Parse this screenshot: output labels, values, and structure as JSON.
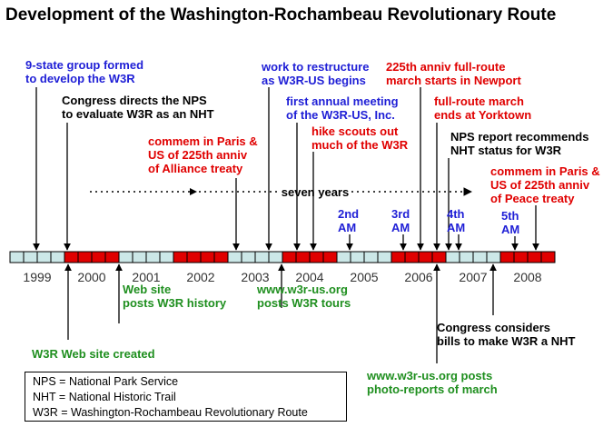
{
  "title": "Development of the Washington-Rochambeau Revolutionary Route",
  "colors": {
    "blue": "#1f1fd6",
    "black": "#000000",
    "red": "#e00000",
    "green": "#1f8f1f",
    "cell_light": "#cce8e8",
    "cell_red": "#e00000"
  },
  "timeline": {
    "years": [
      "1999",
      "2000",
      "2001",
      "2002",
      "2003",
      "2004",
      "2005",
      "2006",
      "2007",
      "2008"
    ],
    "quarters_per_year": 4,
    "red_quarters": [
      [],
      [
        0,
        1,
        2,
        3
      ],
      [],
      [
        0,
        1,
        2,
        3
      ],
      [],
      [
        0,
        1,
        2,
        3
      ],
      [],
      [
        0,
        1,
        2,
        3
      ],
      [],
      [
        0,
        1,
        2,
        3
      ]
    ],
    "span_label": "seven years",
    "span_start_year": 2000.0,
    "span_end_year": 2007.0
  },
  "events": [
    {
      "text": "9-state group formed\nto develop the W3R",
      "color": "blue",
      "year": 1999.0,
      "side": "above"
    },
    {
      "text": "Congress directs the NPS\nto evaluate W3R as an NHT",
      "color": "black",
      "year": 2000.0,
      "side": "above"
    },
    {
      "text": "commem in Paris &\nUS of 225th anniv\nof Alliance treaty",
      "color": "red",
      "year": 2003.0,
      "side": "above"
    },
    {
      "text": "work to restructure\nas W3R-US begins",
      "color": "blue",
      "year": 2003.5,
      "side": "above"
    },
    {
      "text": "first annual meeting\nof the W3R-US, Inc.",
      "color": "blue",
      "year": 2004.0,
      "side": "above"
    },
    {
      "text": "hike scouts out\nmuch of the W3R",
      "color": "red",
      "year": 2004.5,
      "side": "above"
    },
    {
      "text": "2nd\nAM",
      "color": "blue",
      "year": 2005.0,
      "side": "above"
    },
    {
      "text": "3rd\nAM",
      "color": "blue",
      "year": 2006.0,
      "side": "above"
    },
    {
      "text": "225th anniv full-route\nmarch starts in Newport",
      "color": "red",
      "year": 2006.5,
      "side": "above"
    },
    {
      "text": "full-route march\nends at Yorktown",
      "color": "red",
      "year": 2006.75,
      "side": "above"
    },
    {
      "text": "NPS report recommends\nNHT status for W3R",
      "color": "black",
      "year": 2007.0,
      "side": "above"
    },
    {
      "text": "4th\nAM",
      "color": "blue",
      "year": 2007.25,
      "side": "above"
    },
    {
      "text": "5th\nAM",
      "color": "blue",
      "year": 2008.0,
      "side": "above"
    },
    {
      "text": "commem in Paris &\nUS of 225th anniv\nof Peace treaty",
      "color": "red",
      "year": 2008.5,
      "side": "above"
    },
    {
      "text": "W3R Web site created",
      "color": "green",
      "year": 2000.0,
      "side": "below"
    },
    {
      "text": "Web site\nposts W3R history",
      "color": "green",
      "year": 2001.0,
      "side": "below"
    },
    {
      "text": "www.w3r-us.org\nposts W3R tours",
      "color": "green",
      "year": 2003.75,
      "side": "below"
    },
    {
      "text": "Congress considers\nbills to make W3R a NHT",
      "color": "black",
      "year": 2007.25,
      "side": "below"
    },
    {
      "text": "www.w3r-us.org posts\nphoto-reports of march",
      "color": "green",
      "year": 2006.75,
      "side": "below"
    }
  ],
  "legend": [
    "NPS = National Park Service",
    "NHT = National Historic Trail",
    "W3R = Washington-Rochambeau Revolutionary Route"
  ]
}
